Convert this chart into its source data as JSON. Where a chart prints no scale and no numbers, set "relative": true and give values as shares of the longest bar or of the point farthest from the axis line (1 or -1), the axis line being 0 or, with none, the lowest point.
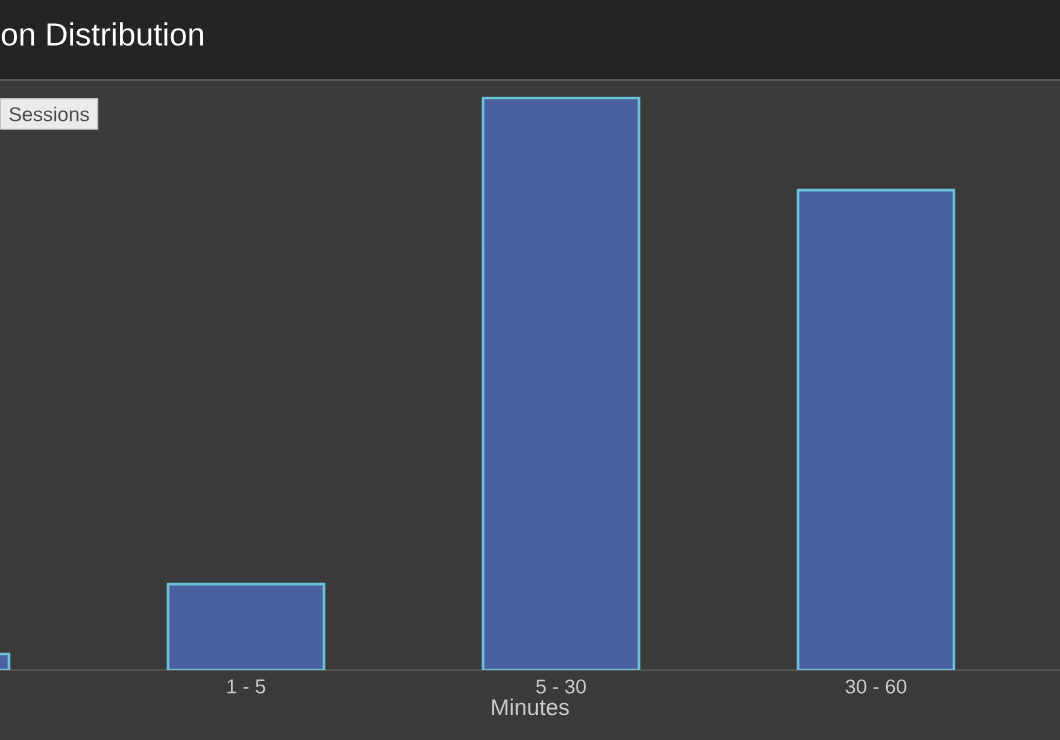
{
  "chart_data": {
    "type": "bar",
    "title": "on Distribution",
    "xlabel": "Minutes",
    "categories": [
      null,
      "1 - 5",
      "5 - 30",
      "30 - 60"
    ],
    "series": [
      {
        "name": "Sessions",
        "color": "#4a60a0",
        "values": [
          0.028,
          0.15,
          1.0,
          0.839
        ]
      }
    ],
    "relative": true,
    "legend": "top left"
  }
}
